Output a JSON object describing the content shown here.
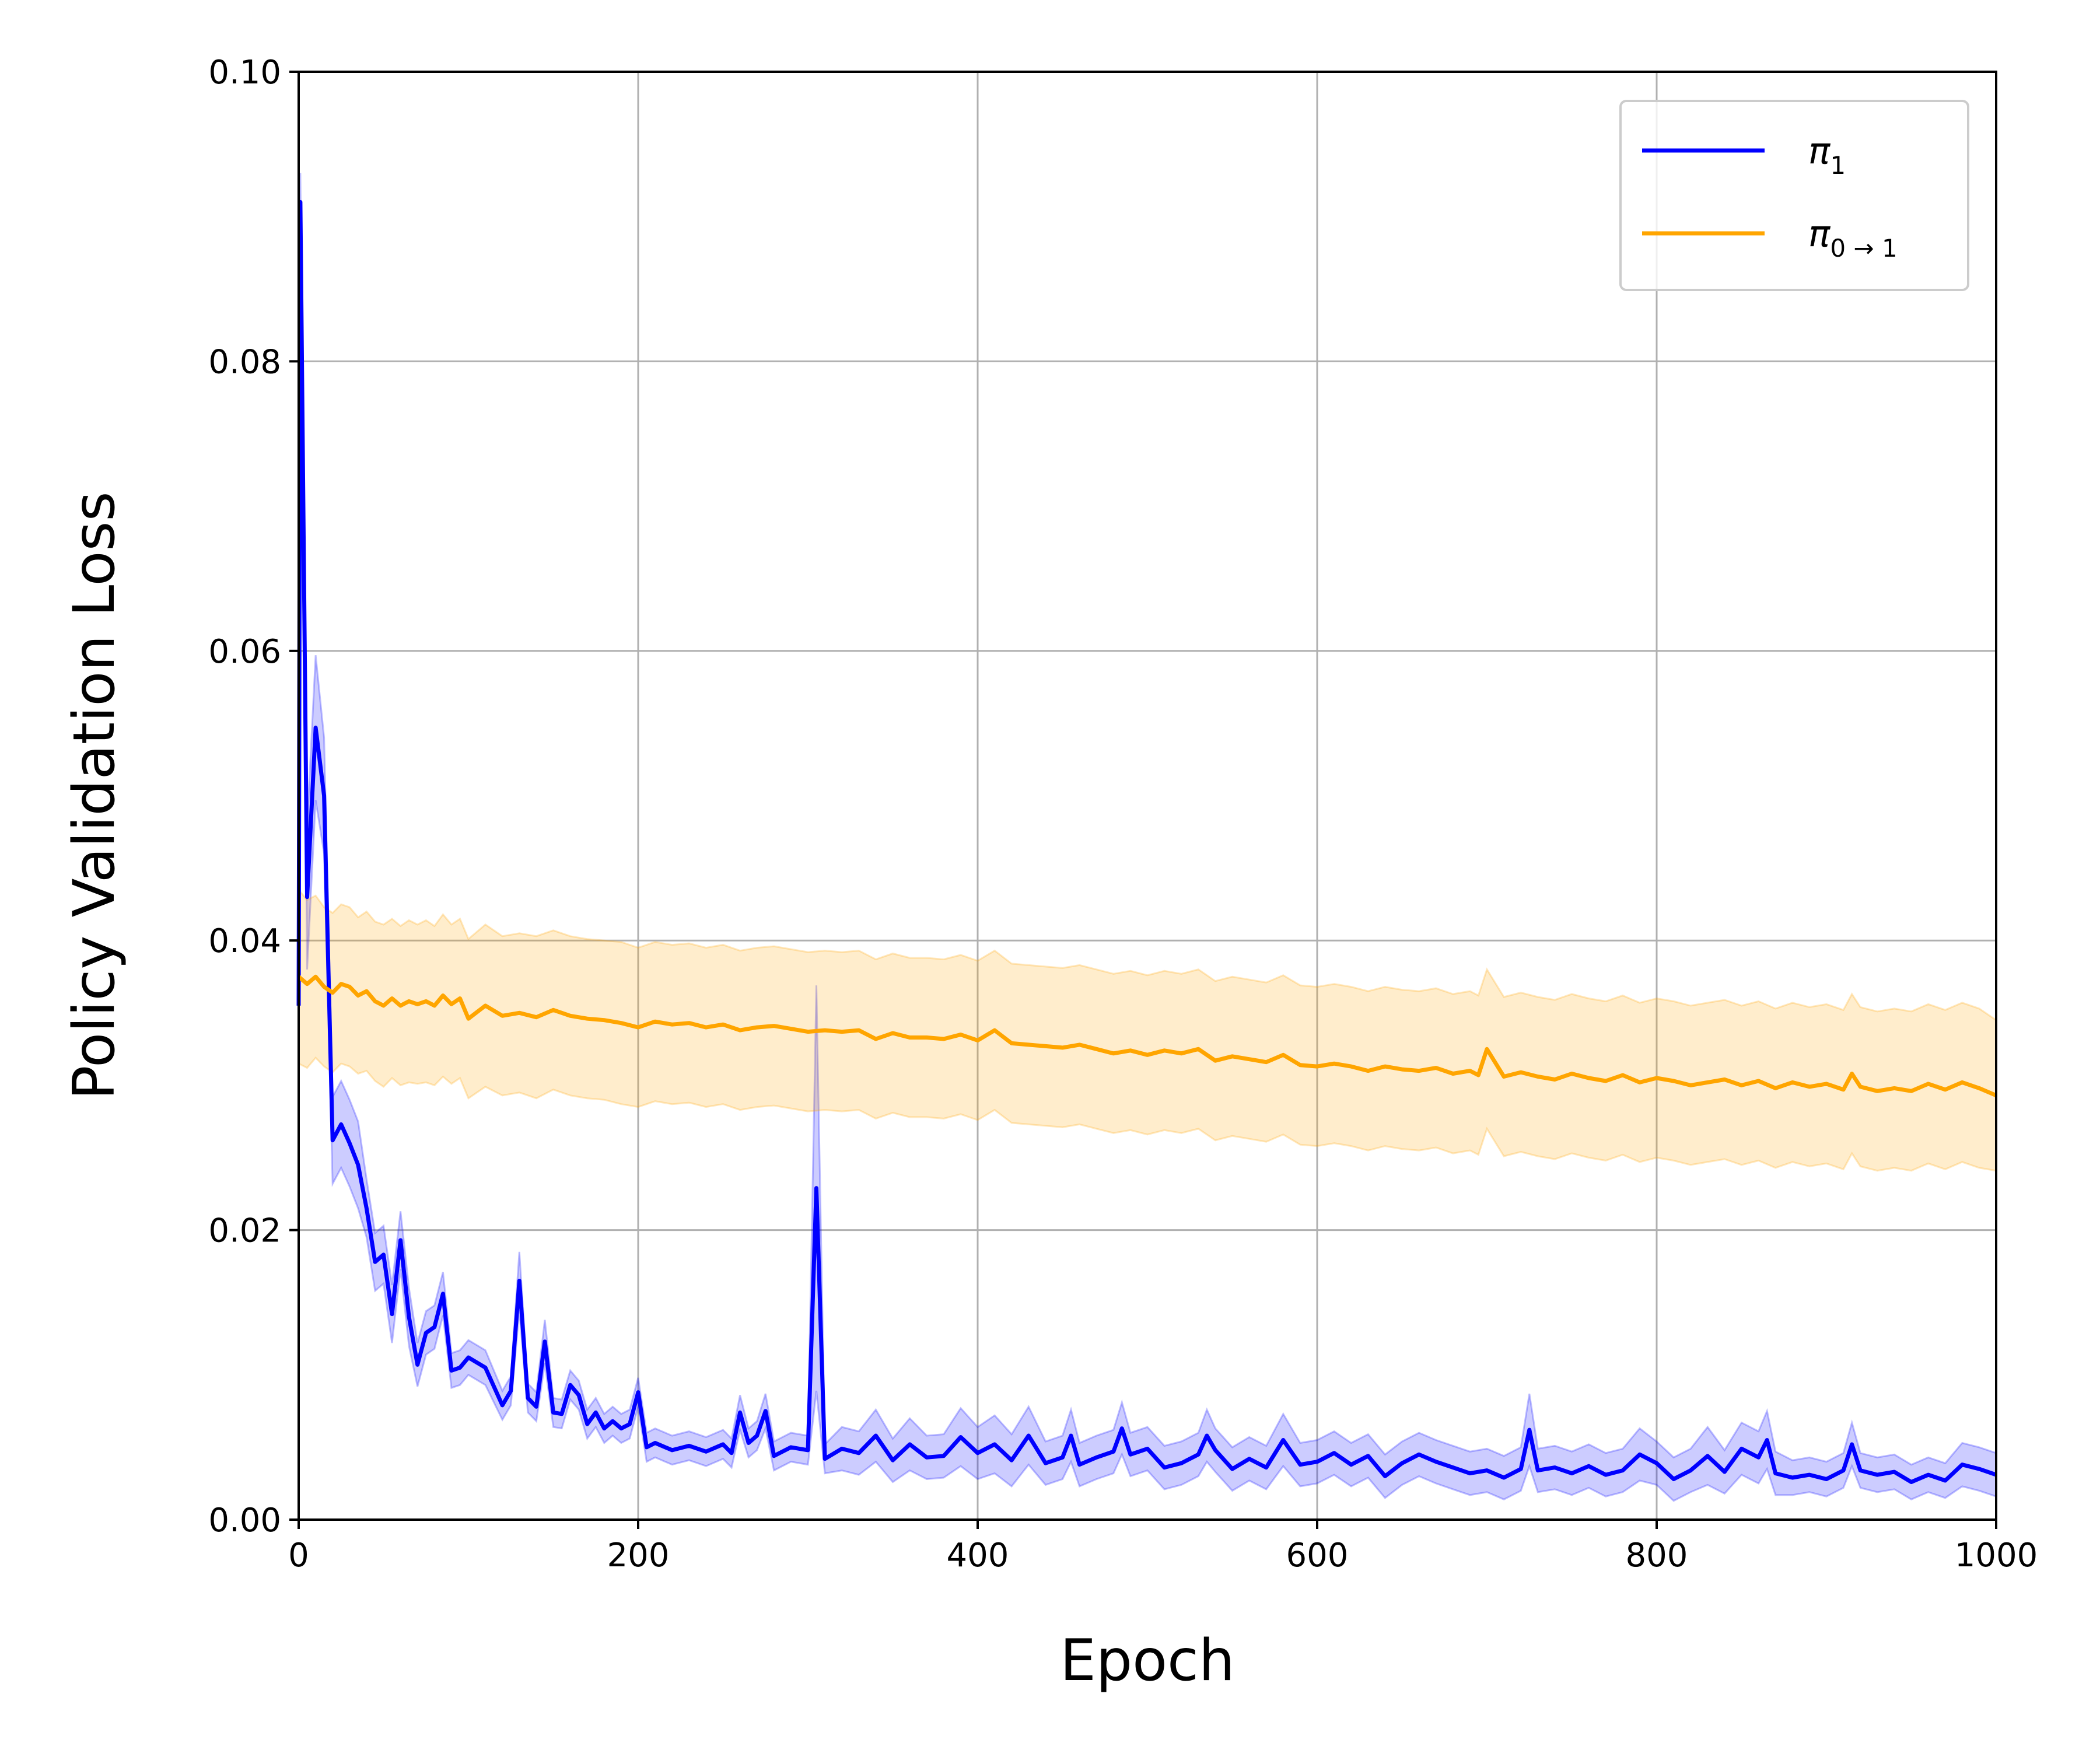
{
  "chart_data": {
    "type": "line",
    "title": "",
    "xlabel": "Epoch",
    "ylabel": "Policy Validation Loss",
    "xlim": [
      0,
      1000
    ],
    "ylim": [
      0,
      0.1
    ],
    "xticks": [
      0,
      200,
      400,
      600,
      800,
      1000
    ],
    "yticks": [
      0.0,
      0.02,
      0.04,
      0.06,
      0.08,
      0.1
    ],
    "xtick_labels": [
      "0",
      "200",
      "400",
      "600",
      "800",
      "1000"
    ],
    "ytick_labels": [
      "0.00",
      "0.02",
      "0.04",
      "0.06",
      "0.08",
      "0.10"
    ],
    "grid": true,
    "legend_position": "top-right",
    "series": [
      {
        "name": "π1",
        "legend_symbol": "π",
        "legend_subscript": "1",
        "color": "#0000ff",
        "band_color": "#0000ff",
        "band_opacity": 0.2,
        "x": [
          0,
          1,
          5,
          10,
          15,
          20,
          25,
          30,
          35,
          40,
          45,
          50,
          55,
          60,
          65,
          70,
          75,
          80,
          85,
          90,
          95,
          100,
          110,
          120,
          125,
          130,
          135,
          140,
          145,
          150,
          155,
          160,
          165,
          170,
          175,
          180,
          185,
          190,
          195,
          200,
          205,
          210,
          220,
          230,
          240,
          250,
          255,
          260,
          265,
          270,
          275,
          280,
          290,
          300,
          305,
          310,
          320,
          330,
          340,
          350,
          360,
          370,
          380,
          390,
          400,
          410,
          420,
          430,
          440,
          450,
          455,
          460,
          470,
          480,
          485,
          490,
          500,
          510,
          520,
          530,
          535,
          540,
          550,
          560,
          570,
          580,
          590,
          600,
          610,
          620,
          630,
          640,
          650,
          660,
          670,
          680,
          690,
          700,
          710,
          720,
          725,
          730,
          740,
          750,
          760,
          770,
          780,
          790,
          800,
          810,
          820,
          830,
          840,
          850,
          860,
          865,
          870,
          880,
          890,
          900,
          910,
          915,
          920,
          930,
          940,
          950,
          960,
          970,
          980,
          990,
          1000
        ],
        "values": [
          0.0355,
          0.091,
          0.043,
          0.0547,
          0.05,
          0.0262,
          0.0273,
          0.026,
          0.0245,
          0.0215,
          0.0178,
          0.0183,
          0.0142,
          0.0193,
          0.014,
          0.0107,
          0.0129,
          0.0133,
          0.0156,
          0.0103,
          0.0105,
          0.0112,
          0.0105,
          0.0079,
          0.0089,
          0.0165,
          0.0084,
          0.0078,
          0.0123,
          0.0074,
          0.0073,
          0.0093,
          0.0086,
          0.0066,
          0.0074,
          0.0063,
          0.0068,
          0.0063,
          0.0066,
          0.0088,
          0.005,
          0.0053,
          0.0048,
          0.0051,
          0.0047,
          0.0052,
          0.0046,
          0.0074,
          0.0053,
          0.0058,
          0.0075,
          0.0044,
          0.005,
          0.0048,
          0.0229,
          0.0042,
          0.0049,
          0.0046,
          0.0058,
          0.0041,
          0.0052,
          0.0043,
          0.0044,
          0.0057,
          0.0046,
          0.0052,
          0.0041,
          0.0058,
          0.0039,
          0.0043,
          0.0058,
          0.0038,
          0.0043,
          0.0047,
          0.0063,
          0.0045,
          0.0049,
          0.0036,
          0.0039,
          0.0045,
          0.0058,
          0.0048,
          0.0035,
          0.0042,
          0.0036,
          0.0055,
          0.0038,
          0.004,
          0.0046,
          0.0038,
          0.0044,
          0.003,
          0.0039,
          0.0045,
          0.004,
          0.0036,
          0.0032,
          0.0034,
          0.0029,
          0.0035,
          0.0062,
          0.0034,
          0.0036,
          0.0032,
          0.0037,
          0.0031,
          0.0034,
          0.0045,
          0.0039,
          0.0028,
          0.0034,
          0.0044,
          0.0033,
          0.0049,
          0.0043,
          0.0055,
          0.0032,
          0.0029,
          0.0031,
          0.0028,
          0.0034,
          0.0052,
          0.0034,
          0.0031,
          0.0033,
          0.0026,
          0.0031,
          0.0027,
          0.0038,
          0.0035,
          0.0031
        ],
        "band_halfwidth": [
          0.003,
          0.002,
          0.005,
          0.005,
          0.004,
          0.003,
          0.003,
          0.003,
          0.003,
          0.002,
          0.002,
          0.002,
          0.002,
          0.002,
          0.002,
          0.0015,
          0.0015,
          0.0015,
          0.0015,
          0.0012,
          0.0012,
          0.0012,
          0.0012,
          0.001,
          0.001,
          0.002,
          0.001,
          0.001,
          0.0015,
          0.001,
          0.001,
          0.001,
          0.001,
          0.001,
          0.001,
          0.001,
          0.001,
          0.001,
          0.001,
          0.001,
          0.001,
          0.001,
          0.001,
          0.001,
          0.001,
          0.001,
          0.001,
          0.0012,
          0.001,
          0.001,
          0.0012,
          0.001,
          0.001,
          0.001,
          0.014,
          0.001,
          0.0015,
          0.0015,
          0.0018,
          0.0015,
          0.0018,
          0.0015,
          0.0015,
          0.002,
          0.0018,
          0.002,
          0.0018,
          0.002,
          0.0015,
          0.0015,
          0.0018,
          0.0015,
          0.0015,
          0.0015,
          0.0018,
          0.0015,
          0.0015,
          0.0015,
          0.0015,
          0.0015,
          0.0018,
          0.0015,
          0.0015,
          0.0015,
          0.0015,
          0.0018,
          0.0015,
          0.0015,
          0.0015,
          0.0015,
          0.0015,
          0.0015,
          0.0015,
          0.0015,
          0.0015,
          0.0015,
          0.0015,
          0.0015,
          0.0015,
          0.0015,
          0.0025,
          0.0015,
          0.0015,
          0.0015,
          0.0015,
          0.0015,
          0.0015,
          0.0018,
          0.0015,
          0.0015,
          0.0015,
          0.002,
          0.0015,
          0.0018,
          0.0018,
          0.002,
          0.0015,
          0.0012,
          0.0012,
          0.0012,
          0.0012,
          0.0015,
          0.0012,
          0.0012,
          0.0012,
          0.0012,
          0.0012,
          0.0012,
          0.0015,
          0.0015,
          0.0015
        ]
      },
      {
        "name": "π0→1",
        "legend_symbol": "π",
        "legend_subscript": "0 → 1",
        "color": "#ffa500",
        "band_color": "#ffa500",
        "band_opacity": 0.2,
        "x": [
          0,
          5,
          10,
          15,
          20,
          25,
          30,
          35,
          40,
          45,
          50,
          55,
          60,
          65,
          70,
          75,
          80,
          85,
          90,
          95,
          100,
          110,
          120,
          130,
          140,
          150,
          160,
          170,
          180,
          190,
          200,
          210,
          220,
          230,
          240,
          250,
          260,
          270,
          280,
          290,
          300,
          310,
          320,
          330,
          340,
          350,
          360,
          370,
          380,
          390,
          400,
          410,
          420,
          430,
          440,
          450,
          460,
          470,
          480,
          490,
          500,
          510,
          520,
          530,
          540,
          550,
          560,
          570,
          580,
          590,
          600,
          610,
          620,
          630,
          640,
          650,
          660,
          670,
          680,
          690,
          695,
          700,
          710,
          720,
          730,
          740,
          750,
          760,
          770,
          780,
          790,
          800,
          810,
          820,
          830,
          840,
          850,
          860,
          870,
          880,
          890,
          900,
          910,
          915,
          920,
          930,
          940,
          950,
          960,
          970,
          980,
          990,
          1000
        ],
        "values": [
          0.0375,
          0.037,
          0.0375,
          0.0368,
          0.0364,
          0.037,
          0.0368,
          0.0362,
          0.0365,
          0.0358,
          0.0355,
          0.036,
          0.0355,
          0.0358,
          0.0356,
          0.0358,
          0.0355,
          0.0362,
          0.0356,
          0.036,
          0.0346,
          0.0355,
          0.0348,
          0.035,
          0.0347,
          0.0352,
          0.0348,
          0.0346,
          0.0345,
          0.0343,
          0.034,
          0.0344,
          0.0342,
          0.0343,
          0.034,
          0.0342,
          0.0338,
          0.034,
          0.0341,
          0.0339,
          0.0337,
          0.0338,
          0.0337,
          0.0338,
          0.0332,
          0.0336,
          0.0333,
          0.0333,
          0.0332,
          0.0335,
          0.0331,
          0.0338,
          0.0329,
          0.0328,
          0.0327,
          0.0326,
          0.0328,
          0.0325,
          0.0322,
          0.0324,
          0.0321,
          0.0324,
          0.0322,
          0.0325,
          0.0317,
          0.032,
          0.0318,
          0.0316,
          0.0321,
          0.0314,
          0.0313,
          0.0315,
          0.0313,
          0.031,
          0.0313,
          0.0311,
          0.031,
          0.0312,
          0.0308,
          0.031,
          0.0307,
          0.0325,
          0.0306,
          0.0309,
          0.0306,
          0.0304,
          0.0308,
          0.0305,
          0.0303,
          0.0307,
          0.0302,
          0.0305,
          0.0303,
          0.03,
          0.0302,
          0.0304,
          0.03,
          0.0303,
          0.0298,
          0.0302,
          0.0299,
          0.0301,
          0.0297,
          0.0308,
          0.0299,
          0.0296,
          0.0298,
          0.0296,
          0.0301,
          0.0297,
          0.0302,
          0.0298,
          0.0293
        ],
        "band_halfwidth": [
          0.006,
          0.0058,
          0.0056,
          0.0055,
          0.0055,
          0.0055,
          0.0055,
          0.0054,
          0.0055,
          0.0055,
          0.0056,
          0.0055,
          0.0055,
          0.0056,
          0.0055,
          0.0056,
          0.0055,
          0.0056,
          0.0055,
          0.0055,
          0.0055,
          0.0056,
          0.0055,
          0.0055,
          0.0056,
          0.0055,
          0.0055,
          0.0055,
          0.0055,
          0.0056,
          0.0055,
          0.0055,
          0.0055,
          0.0055,
          0.0055,
          0.0055,
          0.0055,
          0.0055,
          0.0055,
          0.0055,
          0.0055,
          0.0055,
          0.0055,
          0.0055,
          0.0055,
          0.0055,
          0.0055,
          0.0055,
          0.0055,
          0.0055,
          0.0055,
          0.0055,
          0.0055,
          0.0055,
          0.0055,
          0.0055,
          0.0055,
          0.0055,
          0.0055,
          0.0055,
          0.0055,
          0.0055,
          0.0055,
          0.0055,
          0.0055,
          0.0055,
          0.0055,
          0.0055,
          0.0055,
          0.0055,
          0.0055,
          0.0055,
          0.0055,
          0.0055,
          0.0055,
          0.0055,
          0.0055,
          0.0055,
          0.0055,
          0.0055,
          0.0055,
          0.0055,
          0.0055,
          0.0055,
          0.0055,
          0.0055,
          0.0055,
          0.0055,
          0.0055,
          0.0055,
          0.0055,
          0.0055,
          0.0055,
          0.0055,
          0.0055,
          0.0055,
          0.0055,
          0.0055,
          0.0055,
          0.0055,
          0.0055,
          0.0055,
          0.0055,
          0.0055,
          0.0055,
          0.0055,
          0.0055,
          0.0055,
          0.0055,
          0.0055,
          0.0055,
          0.0055,
          0.0052
        ]
      }
    ]
  }
}
